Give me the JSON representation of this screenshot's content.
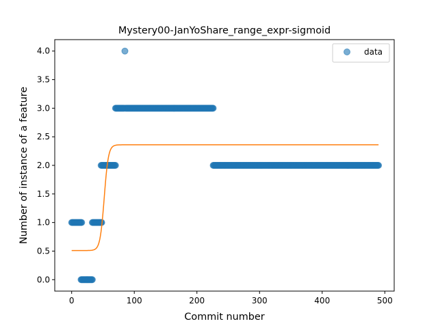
{
  "chart_data": {
    "type": "scatter",
    "title": "Mystery00-JanYoShare_range_expr-sigmoid",
    "xlabel": "Commit number",
    "ylabel": "Number of instance of a feature",
    "xlim": [
      -27,
      515
    ],
    "ylim": [
      -0.2,
      4.2
    ],
    "xticks": [
      0,
      100,
      200,
      300,
      400,
      500
    ],
    "yticks": [
      0.0,
      0.5,
      1.0,
      1.5,
      2.0,
      2.5,
      3.0,
      3.5,
      4.0
    ],
    "grid": false,
    "legend": {
      "position": "top-right",
      "entries": [
        "data"
      ]
    },
    "colors": {
      "data": "#1f77b4",
      "fit": "#ff7f0e"
    },
    "series": [
      {
        "name": "data",
        "kind": "scatter",
        "segments": [
          {
            "x_start": 0,
            "x_end": 16,
            "y": 1
          },
          {
            "x_start": 15,
            "x_end": 33,
            "y": 0
          },
          {
            "x_start": 33,
            "x_end": 48,
            "y": 1
          },
          {
            "x_start": 47,
            "x_end": 70,
            "y": 2
          },
          {
            "x_start": 70,
            "x_end": 84,
            "y": 3
          },
          {
            "x_start": 85,
            "x_end": 85,
            "y": 4
          },
          {
            "x_start": 86,
            "x_end": 226,
            "y": 3
          },
          {
            "x_start": 226,
            "x_end": 490,
            "y": 2
          }
        ]
      },
      {
        "kind": "sigmoid-fit",
        "x_range": [
          0,
          490
        ],
        "lower": 0.51,
        "upper": 2.36,
        "midpoint": 52,
        "steepness": 0.3
      }
    ]
  }
}
